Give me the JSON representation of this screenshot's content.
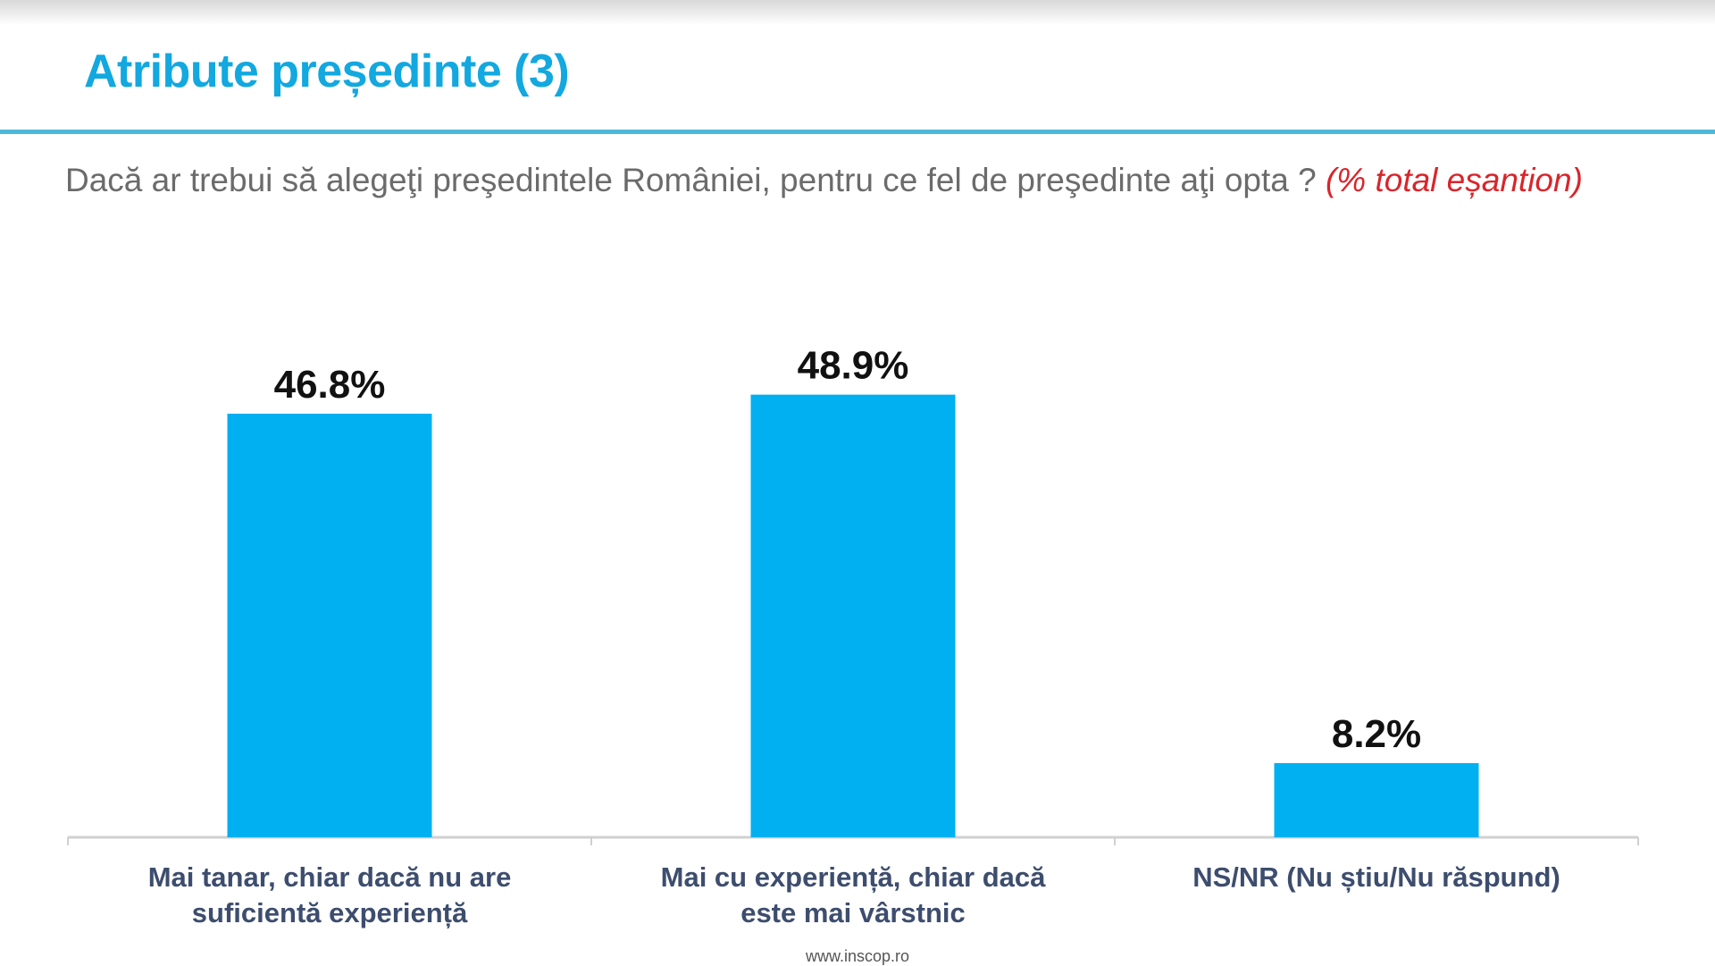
{
  "title": "Atribute președinte (3)",
  "subtitle": {
    "question": "Dacă ar trebui să alegeţi preşedintele României, pentru ce fel de preşedinte aţi opta ? ",
    "note": "(% total eșantion)"
  },
  "footer": "www.inscop.ro",
  "colors": {
    "bar": "#00b0f0",
    "title": "#12a8e0",
    "note": "#d9252b",
    "category_label": "#3d4d6e"
  },
  "chart_data": {
    "type": "bar",
    "categories": [
      [
        "Mai tanar, chiar dacă nu are",
        "suficientă experiență"
      ],
      [
        "Mai cu experiență, chiar dacă",
        "este mai vârstnic"
      ],
      [
        "NS/NR (Nu știu/Nu răspund)"
      ]
    ],
    "values": [
      46.8,
      48.9,
      8.2
    ],
    "data_labels": [
      "46.8%",
      "48.9%",
      "8.2%"
    ],
    "ylim": [
      0,
      55
    ],
    "grid": false,
    "legend": "none"
  }
}
